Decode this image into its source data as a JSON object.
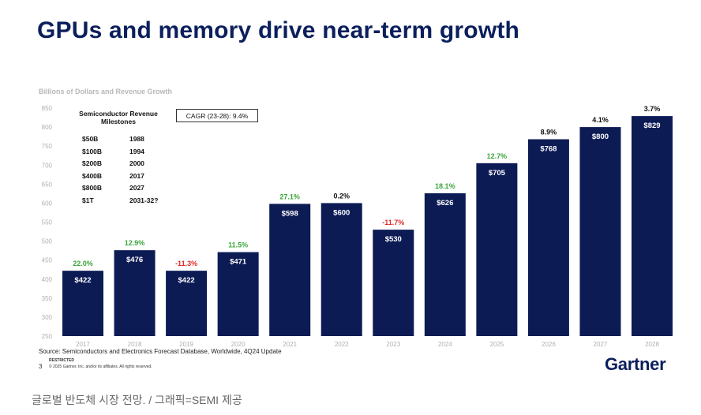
{
  "title": "GPUs and memory drive near-term growth",
  "brand": "Gartner",
  "page_number": "3",
  "restricted_label": "RESTRICTED",
  "copyright": "© 2025 Gartner, Inc. and/or its affiliates. All rights reserved.",
  "source": "Source: Semiconductors and Electronics Forecast Database, Worldwide, 4Q24 Update",
  "caption": "글로벌 반도체 시장 전망. / 그래픽=SEMI 제공",
  "cagr_label": "CAGR (23-28): 9.4%",
  "milestones": {
    "heading_line1": "Semiconductor Revenue",
    "heading_line2": "Milestones",
    "rows": [
      {
        "amount": "$50B",
        "year": "1988"
      },
      {
        "amount": "$100B",
        "year": "1994"
      },
      {
        "amount": "$200B",
        "year": "2000"
      },
      {
        "amount": "$400B",
        "year": "2017"
      },
      {
        "amount": "$800B",
        "year": "2027"
      },
      {
        "amount": "$1T",
        "year": "2031-32?"
      }
    ]
  },
  "colors": {
    "bar": "#0d1b55",
    "positive": "#3aa63a",
    "negative": "#e02828",
    "neutral": "#111111",
    "axis_text": "#b0b0b0"
  },
  "chart_data": {
    "type": "bar",
    "title": "GPUs and memory drive near-term growth",
    "ylabel": "Billions of Dollars and Revenue Growth",
    "xlabel": "",
    "ylim": [
      250,
      850
    ],
    "yticks": [
      250,
      300,
      350,
      400,
      450,
      500,
      550,
      600,
      650,
      700,
      750,
      800,
      850
    ],
    "categories": [
      "2017",
      "2018",
      "2019",
      "2020",
      "2021",
      "2022",
      "2023",
      "2024",
      "2025",
      "2026",
      "2027",
      "2028"
    ],
    "values": [
      422,
      476,
      422,
      471,
      598,
      600,
      530,
      626,
      705,
      768,
      800,
      829
    ],
    "value_labels": [
      "$422",
      "$476",
      "$422",
      "$471",
      "$598",
      "$600",
      "$530",
      "$626",
      "$705",
      "$768",
      "$800",
      "$829"
    ],
    "growth_labels": [
      "22.0%",
      "12.9%",
      "-11.3%",
      "11.5%",
      "27.1%",
      "0.2%",
      "-11.7%",
      "18.1%",
      "12.7%",
      "8.9%",
      "4.1%",
      "3.7%"
    ],
    "growth_colors": [
      "positive",
      "positive",
      "negative",
      "positive",
      "positive",
      "neutral",
      "negative",
      "positive",
      "positive",
      "neutral",
      "neutral",
      "neutral"
    ],
    "grid": false
  }
}
